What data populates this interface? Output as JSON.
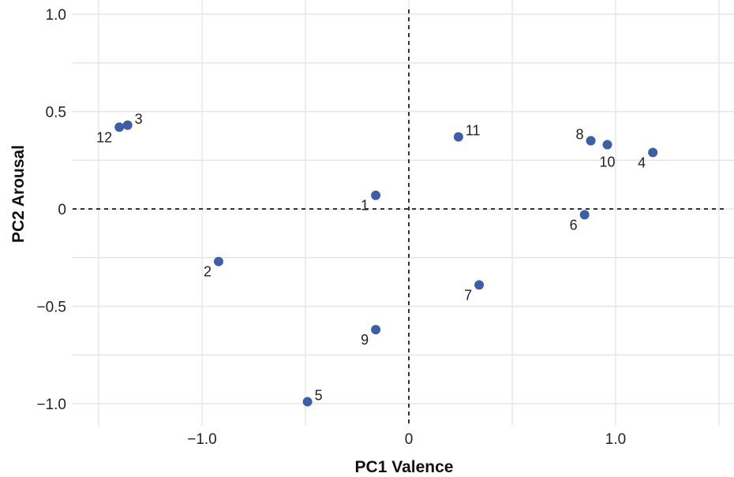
{
  "chart_data": {
    "type": "scatter",
    "title": "",
    "xlabel": "PC1 Valence",
    "ylabel": "PC2 Arousal",
    "xlim": [
      -1.5,
      1.5
    ],
    "ylim": [
      -1.1,
      1.0
    ],
    "x_ticks": [
      {
        "value": -1.0,
        "label": "−1.0"
      },
      {
        "value": 0,
        "label": "0"
      },
      {
        "value": 1.0,
        "label": "1.0"
      }
    ],
    "y_ticks": [
      {
        "value": 1.0,
        "label": "1.0"
      },
      {
        "value": 0.5,
        "label": "0.5"
      },
      {
        "value": 0,
        "label": "0"
      },
      {
        "value": -0.5,
        "label": "−0.5"
      },
      {
        "value": -1.0,
        "label": "−1.0"
      }
    ],
    "grid": true,
    "reference_lines": {
      "x": 0,
      "y": 0,
      "style": "dashed"
    },
    "point_color": "#3e5fa3",
    "points": [
      {
        "label": "1",
        "x": -0.16,
        "y": 0.07,
        "label_pos": "below-left"
      },
      {
        "label": "2",
        "x": -0.92,
        "y": -0.27,
        "label_pos": "below-left"
      },
      {
        "label": "3",
        "x": -1.36,
        "y": 0.43,
        "label_pos": "right"
      },
      {
        "label": "4",
        "x": 1.18,
        "y": 0.29,
        "label_pos": "below-left"
      },
      {
        "label": "5",
        "x": -0.49,
        "y": -0.99,
        "label_pos": "right"
      },
      {
        "label": "6",
        "x": 0.85,
        "y": -0.03,
        "label_pos": "below-left"
      },
      {
        "label": "7",
        "x": 0.34,
        "y": -0.39,
        "label_pos": "below-left"
      },
      {
        "label": "8",
        "x": 0.88,
        "y": 0.35,
        "label_pos": "left"
      },
      {
        "label": "9",
        "x": -0.16,
        "y": -0.62,
        "label_pos": "below-left"
      },
      {
        "label": "10",
        "x": 0.96,
        "y": 0.33,
        "label_pos": "below"
      },
      {
        "label": "11",
        "x": 0.24,
        "y": 0.37,
        "label_pos": "right"
      },
      {
        "label": "12",
        "x": -1.4,
        "y": 0.42,
        "label_pos": "below-left"
      }
    ]
  }
}
